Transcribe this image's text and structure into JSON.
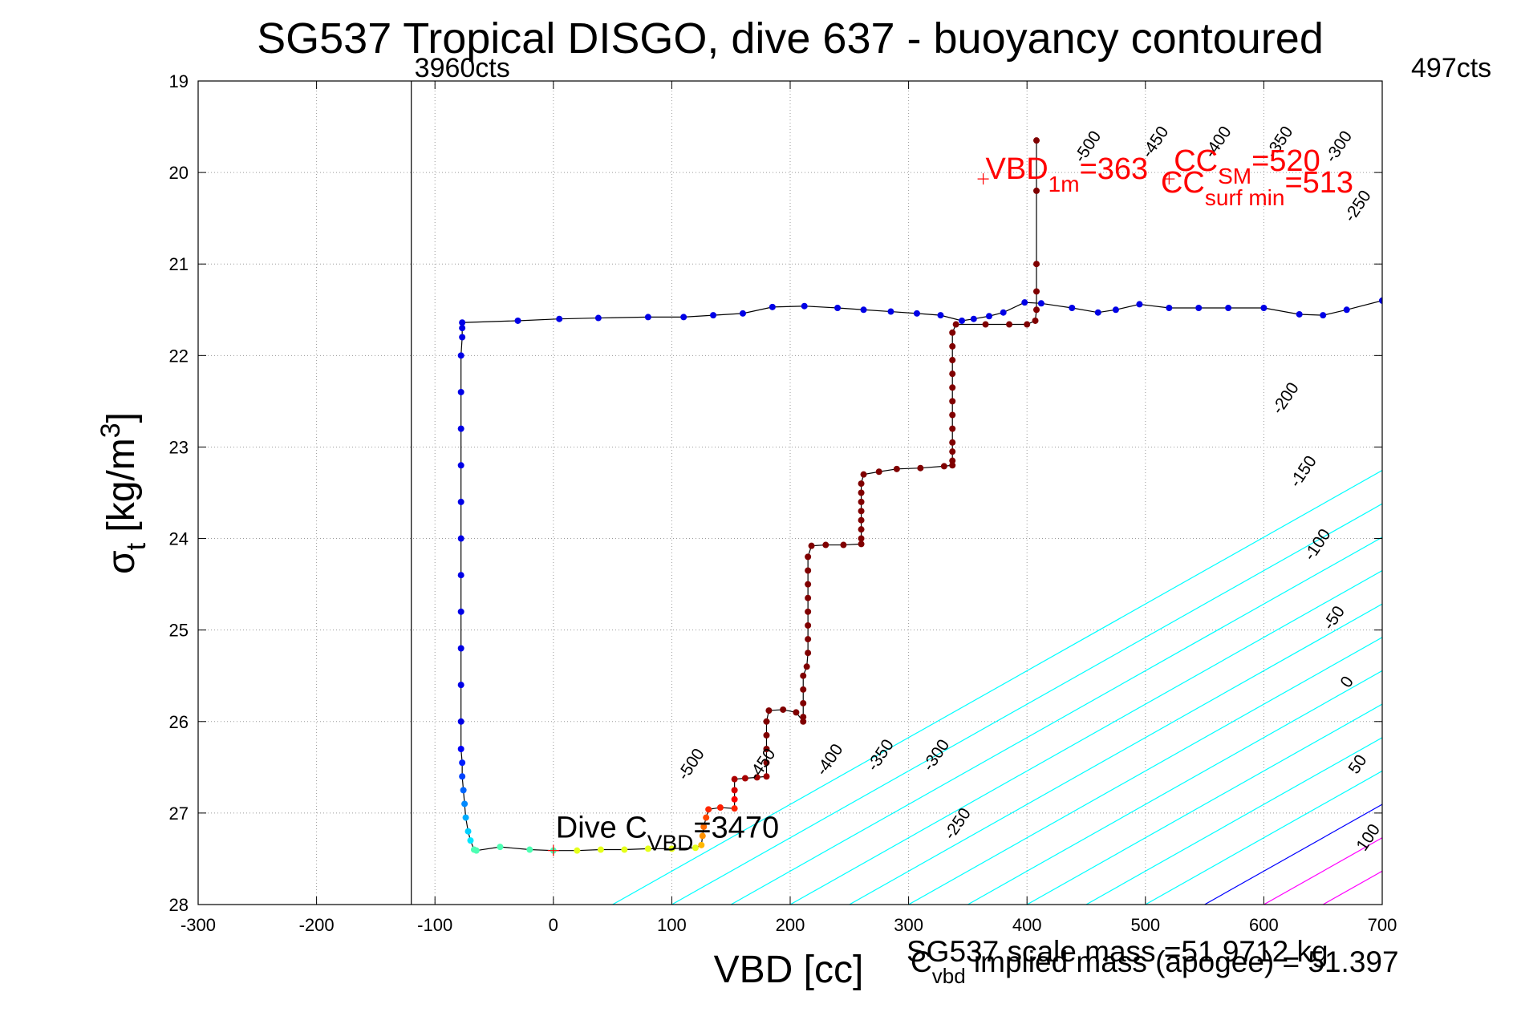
{
  "chart_data": {
    "type": "scatter",
    "title": "SG537 Tropical DISGO, dive 637 - buoyancy contoured",
    "xlabel": "VBD [cc]",
    "ylabel": {
      "base": "σ",
      "sub": "t",
      "unit_pre": " [kg/m",
      "unit_sup": "3",
      "unit_post": "]"
    },
    "xlim": [
      -300,
      700
    ],
    "ylim": [
      19,
      28
    ],
    "y_reversed": true,
    "grid": true,
    "xticks": [
      -300,
      -200,
      -100,
      0,
      100,
      200,
      300,
      400,
      500,
      600,
      700
    ],
    "yticks": [
      19,
      20,
      21,
      22,
      23,
      24,
      25,
      26,
      27,
      28
    ],
    "vbd_limit_lines": [
      {
        "x": -120,
        "label": "3960cts"
      },
      {
        "x": 700,
        "label": "497cts"
      }
    ],
    "contours": {
      "levels": [
        -500,
        -450,
        -400,
        -350,
        -300,
        -250,
        -200,
        -150,
        -100,
        -50,
        0,
        50,
        100
      ],
      "spacing_x_at_fixed_y": 50,
      "x_at_sigma28_for_zero": 550,
      "x_shift_per_sigma_unit": 137,
      "colors": {
        "negative": "#00ffff",
        "zero": "#0000ff",
        "positive": "#ff00ff"
      },
      "bottom_labels": [
        {
          "level": -500,
          "x": 120,
          "y": 26.5
        },
        {
          "level": -450,
          "x": 180,
          "y": 26.5
        },
        {
          "level": -400,
          "x": 237,
          "y": 26.45
        },
        {
          "level": -350,
          "x": 280,
          "y": 26.4
        },
        {
          "level": -300,
          "x": 327,
          "y": 26.4
        },
        {
          "level": -250,
          "x": 345,
          "y": 27.15
        },
        {
          "level": -200,
          "x": 622,
          "y": 22.5
        },
        {
          "level": -150,
          "x": 637,
          "y": 23.3
        },
        {
          "level": -100,
          "x": 649,
          "y": 24.1
        },
        {
          "level": -50,
          "x": 663,
          "y": 24.9
        },
        {
          "level": 0,
          "x": 674,
          "y": 25.6
        },
        {
          "level": 50,
          "x": 683,
          "y": 26.5
        },
        {
          "level": 100,
          "x": 692,
          "y": 27.3
        }
      ],
      "top_labels": [
        {
          "level": -500,
          "x": 455,
          "y": 19.75
        },
        {
          "level": -450,
          "x": 512,
          "y": 19.7
        },
        {
          "level": -400,
          "x": 565,
          "y": 19.7
        },
        {
          "level": -350,
          "x": 617,
          "y": 19.7
        },
        {
          "level": -300,
          "x": 667,
          "y": 19.75
        },
        {
          "level": -250,
          "x": 683,
          "y": 20.4
        }
      ]
    },
    "dive_profile": [
      [
        408,
        19.65
      ],
      [
        408,
        20.2
      ],
      [
        408,
        21.0
      ],
      [
        408,
        21.3
      ],
      [
        408,
        21.5
      ],
      [
        407,
        21.62
      ],
      [
        400,
        21.66
      ],
      [
        385,
        21.66
      ],
      [
        365,
        21.66
      ],
      [
        340,
        21.66
      ],
      [
        337,
        21.75
      ],
      [
        337,
        21.9
      ],
      [
        337,
        22.05
      ],
      [
        337,
        22.2
      ],
      [
        337,
        22.35
      ],
      [
        337,
        22.5
      ],
      [
        337,
        22.65
      ],
      [
        337,
        22.8
      ],
      [
        337,
        22.95
      ],
      [
        337,
        23.05
      ],
      [
        337,
        23.15
      ],
      [
        337,
        23.2
      ],
      [
        330,
        23.21
      ],
      [
        310,
        23.23
      ],
      [
        290,
        23.24
      ],
      [
        275,
        23.27
      ],
      [
        262,
        23.3
      ],
      [
        260,
        23.4
      ],
      [
        260,
        23.5
      ],
      [
        260,
        23.6
      ],
      [
        260,
        23.7
      ],
      [
        260,
        23.8
      ],
      [
        260,
        23.9
      ],
      [
        260,
        24.0
      ],
      [
        260,
        24.06
      ],
      [
        245,
        24.07
      ],
      [
        230,
        24.07
      ],
      [
        218,
        24.08
      ],
      [
        215,
        24.2
      ],
      [
        215,
        24.35
      ],
      [
        215,
        24.5
      ],
      [
        215,
        24.65
      ],
      [
        215,
        24.8
      ],
      [
        215,
        24.95
      ],
      [
        215,
        25.1
      ],
      [
        215,
        25.25
      ],
      [
        214,
        25.4
      ],
      [
        211,
        25.5
      ],
      [
        211,
        25.65
      ],
      [
        211,
        25.8
      ],
      [
        211,
        25.95
      ],
      [
        211,
        26.0
      ],
      [
        205,
        25.9
      ],
      [
        194,
        25.87
      ],
      [
        182,
        25.88
      ],
      [
        180,
        26.0
      ],
      [
        180,
        26.15
      ],
      [
        180,
        26.3
      ],
      [
        180,
        26.45
      ],
      [
        180,
        26.6
      ],
      [
        172,
        26.61
      ],
      [
        162,
        26.62
      ],
      [
        153,
        26.63
      ],
      [
        153,
        26.75
      ],
      [
        153,
        26.85
      ],
      [
        153,
        26.95
      ],
      [
        141,
        26.94
      ],
      [
        131,
        26.96
      ],
      [
        129,
        27.05
      ],
      [
        127,
        27.15
      ],
      [
        126,
        27.25
      ],
      [
        125,
        27.35
      ],
      [
        120,
        27.38
      ],
      [
        100,
        27.39
      ],
      [
        80,
        27.39
      ],
      [
        60,
        27.4
      ],
      [
        40,
        27.4
      ],
      [
        20,
        27.41
      ],
      [
        0,
        27.41
      ],
      [
        -20,
        27.4
      ],
      [
        -45,
        27.37
      ],
      [
        -65,
        27.41
      ],
      [
        -67,
        27.4
      ],
      [
        -70,
        27.3
      ],
      [
        -72,
        27.2
      ],
      [
        -74,
        27.05
      ],
      [
        -75,
        26.9
      ],
      [
        -76,
        26.75
      ],
      [
        -77,
        26.6
      ],
      [
        -77,
        26.45
      ],
      [
        -78,
        26.3
      ],
      [
        -78,
        26.0
      ],
      [
        -78,
        25.6
      ],
      [
        -78,
        25.2
      ],
      [
        -78,
        24.8
      ],
      [
        -78,
        24.4
      ],
      [
        -78,
        24.0
      ],
      [
        -78,
        23.6
      ],
      [
        -78,
        23.2
      ],
      [
        -78,
        22.8
      ],
      [
        -78,
        22.4
      ],
      [
        -78,
        22.0
      ],
      [
        -77,
        21.8
      ],
      [
        -77,
        21.7
      ],
      [
        -77,
        21.64
      ],
      [
        -30,
        21.62
      ],
      [
        5,
        21.6
      ],
      [
        38,
        21.59
      ],
      [
        80,
        21.58
      ],
      [
        110,
        21.58
      ],
      [
        135,
        21.56
      ],
      [
        160,
        21.54
      ],
      [
        185,
        21.47
      ],
      [
        212,
        21.46
      ],
      [
        240,
        21.48
      ],
      [
        262,
        21.5
      ],
      [
        285,
        21.52
      ],
      [
        307,
        21.54
      ],
      [
        327,
        21.56
      ],
      [
        345,
        21.62
      ],
      [
        355,
        21.6
      ],
      [
        368,
        21.57
      ],
      [
        380,
        21.53
      ],
      [
        398,
        21.42
      ],
      [
        412,
        21.43
      ],
      [
        438,
        21.48
      ],
      [
        460,
        21.53
      ],
      [
        475,
        21.5
      ],
      [
        495,
        21.44
      ],
      [
        520,
        21.48
      ],
      [
        545,
        21.48
      ],
      [
        570,
        21.48
      ],
      [
        600,
        21.48
      ],
      [
        630,
        21.55
      ],
      [
        650,
        21.56
      ],
      [
        670,
        21.5
      ],
      [
        700,
        21.4
      ]
    ],
    "annotations": [
      {
        "text_parts": [
          {
            "t": "Dive C"
          },
          {
            "t": "VBD",
            "sub": true
          },
          {
            "t": "=3470"
          }
        ],
        "x": 2,
        "y": 27.27,
        "color": "#000000",
        "marker_x": 0,
        "marker_y": 27.41
      },
      {
        "text_parts": [
          {
            "t": "VBD"
          },
          {
            "t": "1m",
            "sub": true
          },
          {
            "t": "=363"
          }
        ],
        "x": 365,
        "y": 20.07,
        "color": "#ff0000",
        "marker_x": 363,
        "marker_y": 20.07
      },
      {
        "text_parts": [
          {
            "t": "CC"
          },
          {
            "t": "SM",
            "sub": true
          },
          {
            "t": "=520"
          }
        ],
        "x": 524,
        "y": 19.98,
        "color": "#ff0000",
        "marker_x": 520,
        "marker_y": 20.07
      },
      {
        "text_parts": [
          {
            "t": "CC"
          },
          {
            "t": "surf min",
            "sub": true
          },
          {
            "t": "=513"
          }
        ],
        "x": 513,
        "y": 20.22,
        "color": "#ff0000"
      }
    ],
    "footer_lines": [
      "SG537 scale mass =51.9712 kg",
      "C_vbd implied mass (apogee) = 51.397"
    ]
  }
}
